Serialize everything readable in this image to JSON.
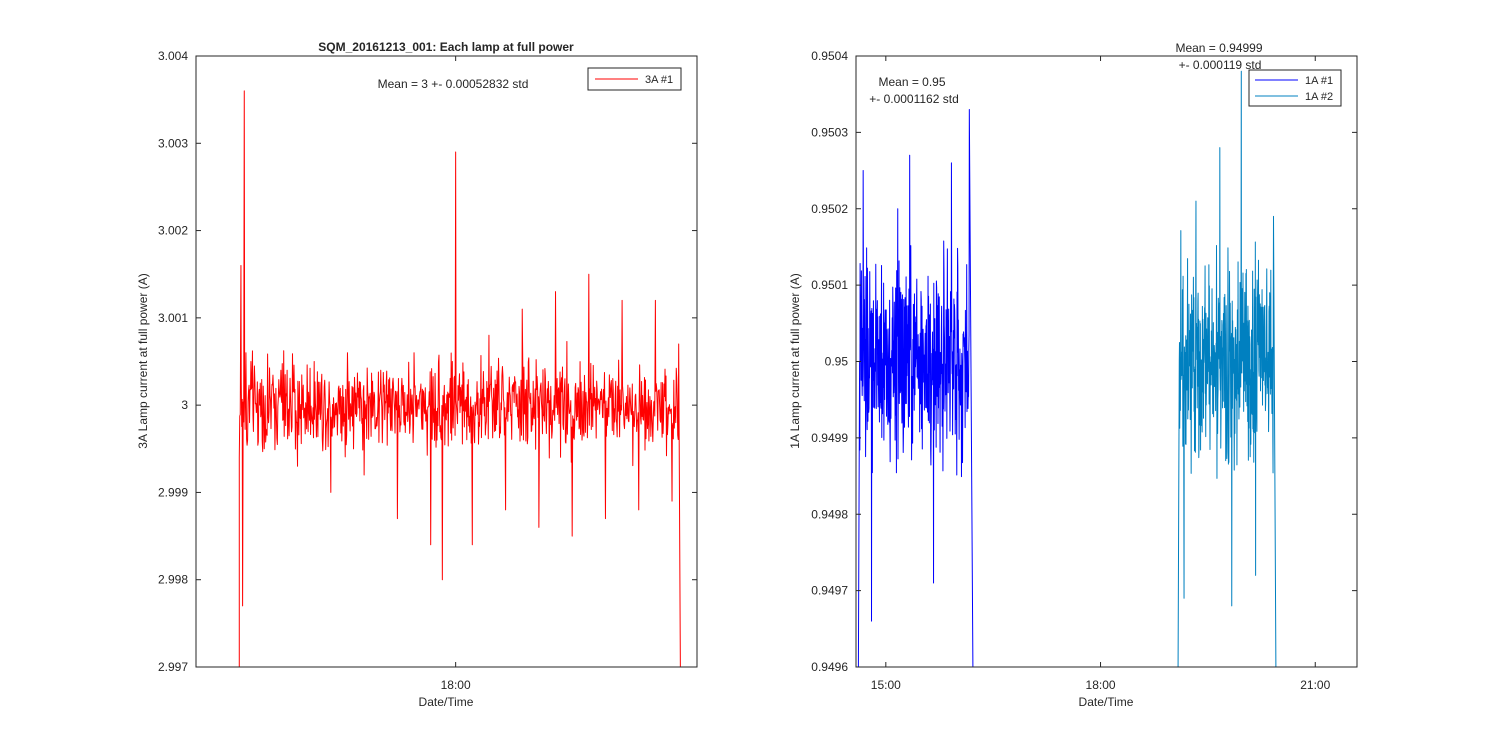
{
  "chart_data": [
    {
      "type": "line",
      "title": "SQM_20161213_001: Each lamp at full power",
      "xlabel": "Date/Time",
      "ylabel": "3A Lamp current at full power (A)",
      "xlim": [
        "2016-12-13 15:24",
        "2016-12-13 20:25"
      ],
      "ylim": [
        2.997,
        3.004
      ],
      "x_ticks": [
        {
          "x": "2016-12-13 18:00",
          "label": "18:00"
        }
      ],
      "y_ticks": [
        2.997,
        2.998,
        2.999,
        3,
        3.001,
        3.002,
        3.003,
        3.004
      ],
      "y_tick_labels": [
        "2.997",
        "2.998",
        "2.999",
        "3",
        "3.001",
        "3.002",
        "3.003",
        "3.004"
      ],
      "annotation": "Mean = 3 +- 0.00052832 std",
      "legend_position": "top-right",
      "series": [
        {
          "name": "3A #1",
          "color": "#ff0000",
          "x_start": "2016-12-13 15:50",
          "x_end": "2016-12-13 20:15",
          "points": [
            [
              "2016-12-13 15:50",
              2.997
            ],
            [
              "2016-12-13 15:50",
              2.9994
            ],
            [
              "2016-12-13 15:51",
              3.0016
            ],
            [
              "2016-12-13 15:52",
              2.9977
            ],
            [
              "2016-12-13 15:53",
              3.0036
            ],
            [
              "2016-12-13 15:54",
              3.0006
            ],
            [
              "2016-12-13 15:55",
              2.9996
            ],
            [
              "2016-12-13 15:57",
              3.0005
            ],
            [
              "2016-12-13 16:05",
              2.9995
            ],
            [
              "2016-12-13 16:15",
              3.0004
            ],
            [
              "2016-12-13 16:25",
              2.9993
            ],
            [
              "2016-12-13 16:35",
              3.0005
            ],
            [
              "2016-12-13 16:45",
              2.999
            ],
            [
              "2016-12-13 16:55",
              3.0006
            ],
            [
              "2016-12-13 17:05",
              2.9992
            ],
            [
              "2016-12-13 17:15",
              3.0004
            ],
            [
              "2016-12-13 17:25",
              2.9987
            ],
            [
              "2016-12-13 17:35",
              3.0006
            ],
            [
              "2016-12-13 17:45",
              2.9984
            ],
            [
              "2016-12-13 17:52",
              2.998
            ],
            [
              "2016-12-13 17:58",
              3.0005
            ],
            [
              "2016-12-13 18:00",
              3.0029
            ],
            [
              "2016-12-13 18:02",
              3.0002
            ],
            [
              "2016-12-13 18:10",
              2.9984
            ],
            [
              "2016-12-13 18:20",
              3.0008
            ],
            [
              "2016-12-13 18:30",
              2.9988
            ],
            [
              "2016-12-13 18:40",
              3.0011
            ],
            [
              "2016-12-13 18:50",
              2.9986
            ],
            [
              "2016-12-13 19:00",
              3.0013
            ],
            [
              "2016-12-13 19:10",
              2.9985
            ],
            [
              "2016-12-13 19:20",
              3.0015
            ],
            [
              "2016-12-13 19:30",
              2.9987
            ],
            [
              "2016-12-13 19:40",
              3.0012
            ],
            [
              "2016-12-13 19:50",
              2.9988
            ],
            [
              "2016-12-13 20:00",
              3.0012
            ],
            [
              "2016-12-13 20:10",
              2.9989
            ],
            [
              "2016-12-13 20:14",
              3.0007
            ],
            [
              "2016-12-13 20:15",
              2.997
            ]
          ]
        }
      ]
    },
    {
      "type": "line",
      "title": "",
      "xlabel": "Date/Time",
      "ylabel": "1A Lamp current at full power (A)",
      "xlim": [
        "2016-12-13 14:35",
        "2016-12-13 21:35"
      ],
      "ylim": [
        0.9496,
        0.9504
      ],
      "x_ticks": [
        {
          "x": "2016-12-13 15:00",
          "label": "15:00"
        },
        {
          "x": "2016-12-13 18:00",
          "label": "18:00"
        },
        {
          "x": "2016-12-13 21:00",
          "label": "21:00"
        }
      ],
      "y_ticks": [
        0.9496,
        0.9497,
        0.9498,
        0.9499,
        0.95,
        0.9501,
        0.9502,
        0.9503,
        0.9504
      ],
      "y_tick_labels": [
        "0.9496",
        "0.9497",
        "0.9498",
        "0.9499",
        "0.95",
        "0.9501",
        "0.9502",
        "0.9503",
        "0.9504"
      ],
      "annotations": [
        {
          "line1": "Mean = 0.95",
          "line2": "+- 0.0001162 std"
        },
        {
          "line1": "Mean = 0.94999",
          "line2": "+- 0.000119 std"
        }
      ],
      "legend_position": "top-right",
      "series": [
        {
          "name": "1A #1",
          "color": "#0000ff",
          "x_start": "2016-12-13 14:37",
          "x_end": "2016-12-13 16:13",
          "points": [
            [
              "2016-12-13 14:37",
              0.9496
            ],
            [
              "2016-12-13 14:38",
              0.95
            ],
            [
              "2016-12-13 14:41",
              0.95025
            ],
            [
              "2016-12-13 14:48",
              0.94966
            ],
            [
              "2016-12-13 15:10",
              0.9502
            ],
            [
              "2016-12-13 15:20",
              0.95027
            ],
            [
              "2016-12-13 15:40",
              0.94971
            ],
            [
              "2016-12-13 15:55",
              0.95026
            ],
            [
              "2016-12-13 16:10",
              0.95033
            ],
            [
              "2016-12-13 16:13",
              0.9496
            ]
          ]
        },
        {
          "name": "1A #2",
          "color": "#0080c0",
          "x_start": "2016-12-13 19:05",
          "x_end": "2016-12-13 20:27",
          "points": [
            [
              "2016-12-13 19:05",
              0.9496
            ],
            [
              "2016-12-13 19:06",
              0.95
            ],
            [
              "2016-12-13 19:10",
              0.94969
            ],
            [
              "2016-12-13 19:20",
              0.95021
            ],
            [
              "2016-12-13 19:40",
              0.95028
            ],
            [
              "2016-12-13 19:50",
              0.94968
            ],
            [
              "2016-12-13 19:58",
              0.95038
            ],
            [
              "2016-12-13 20:10",
              0.94972
            ],
            [
              "2016-12-13 20:25",
              0.95019
            ],
            [
              "2016-12-13 20:27",
              0.9496
            ]
          ]
        }
      ]
    }
  ]
}
